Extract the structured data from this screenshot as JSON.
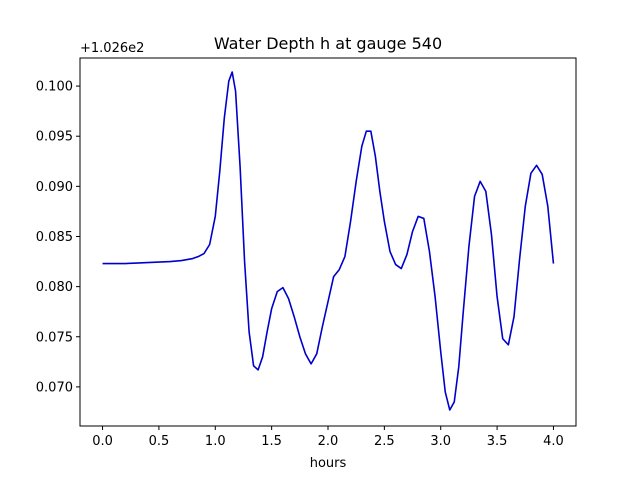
{
  "chart_data": {
    "type": "line",
    "title": "Water Depth h at gauge 540",
    "xlabel": "hours",
    "ylabel": "",
    "y_offset_label": "+1.026e2",
    "xlim": [
      -0.2,
      4.2
    ],
    "ylim": [
      0.0661,
      0.1028
    ],
    "xticks": [
      0.0,
      0.5,
      1.0,
      1.5,
      2.0,
      2.5,
      3.0,
      3.5,
      4.0
    ],
    "xtick_labels": [
      "0.0",
      "0.5",
      "1.0",
      "1.5",
      "2.0",
      "2.5",
      "3.0",
      "3.5",
      "4.0"
    ],
    "yticks": [
      0.07,
      0.075,
      0.08,
      0.085,
      0.09,
      0.095,
      0.1
    ],
    "ytick_labels": [
      "0.070",
      "0.075",
      "0.080",
      "0.085",
      "0.090",
      "0.095",
      "0.100"
    ],
    "grid": false,
    "series": [
      {
        "color": "#0000cc",
        "x": [
          0.0,
          0.1,
          0.2,
          0.3,
          0.4,
          0.5,
          0.6,
          0.7,
          0.8,
          0.85,
          0.9,
          0.95,
          1.0,
          1.04,
          1.08,
          1.12,
          1.15,
          1.18,
          1.22,
          1.26,
          1.3,
          1.34,
          1.38,
          1.42,
          1.46,
          1.5,
          1.55,
          1.6,
          1.65,
          1.7,
          1.75,
          1.8,
          1.85,
          1.9,
          1.95,
          2.0,
          2.05,
          2.1,
          2.15,
          2.2,
          2.25,
          2.3,
          2.34,
          2.38,
          2.42,
          2.46,
          2.5,
          2.55,
          2.6,
          2.65,
          2.7,
          2.75,
          2.8,
          2.85,
          2.9,
          2.95,
          3.0,
          3.04,
          3.08,
          3.12,
          3.16,
          3.2,
          3.25,
          3.3,
          3.35,
          3.4,
          3.45,
          3.5,
          3.55,
          3.6,
          3.65,
          3.7,
          3.75,
          3.8,
          3.85,
          3.9,
          3.95,
          4.0
        ],
        "values": [
          0.0823,
          0.0823,
          0.0823,
          0.08235,
          0.0824,
          0.08245,
          0.0825,
          0.0826,
          0.0828,
          0.083,
          0.0833,
          0.0842,
          0.087,
          0.0915,
          0.0968,
          0.1005,
          0.1014,
          0.0995,
          0.092,
          0.0825,
          0.0755,
          0.0721,
          0.0717,
          0.073,
          0.0755,
          0.0778,
          0.0795,
          0.0799,
          0.0788,
          0.077,
          0.075,
          0.0733,
          0.0723,
          0.0733,
          0.076,
          0.0785,
          0.081,
          0.0817,
          0.083,
          0.0865,
          0.0905,
          0.094,
          0.0955,
          0.0955,
          0.093,
          0.0895,
          0.0865,
          0.0835,
          0.0822,
          0.0818,
          0.0832,
          0.0855,
          0.087,
          0.0868,
          0.0835,
          0.079,
          0.0735,
          0.0695,
          0.0677,
          0.0685,
          0.072,
          0.0775,
          0.084,
          0.089,
          0.0905,
          0.0895,
          0.0852,
          0.079,
          0.0748,
          0.0742,
          0.077,
          0.0828,
          0.088,
          0.0913,
          0.0921,
          0.0912,
          0.088,
          0.0823
        ]
      }
    ]
  }
}
